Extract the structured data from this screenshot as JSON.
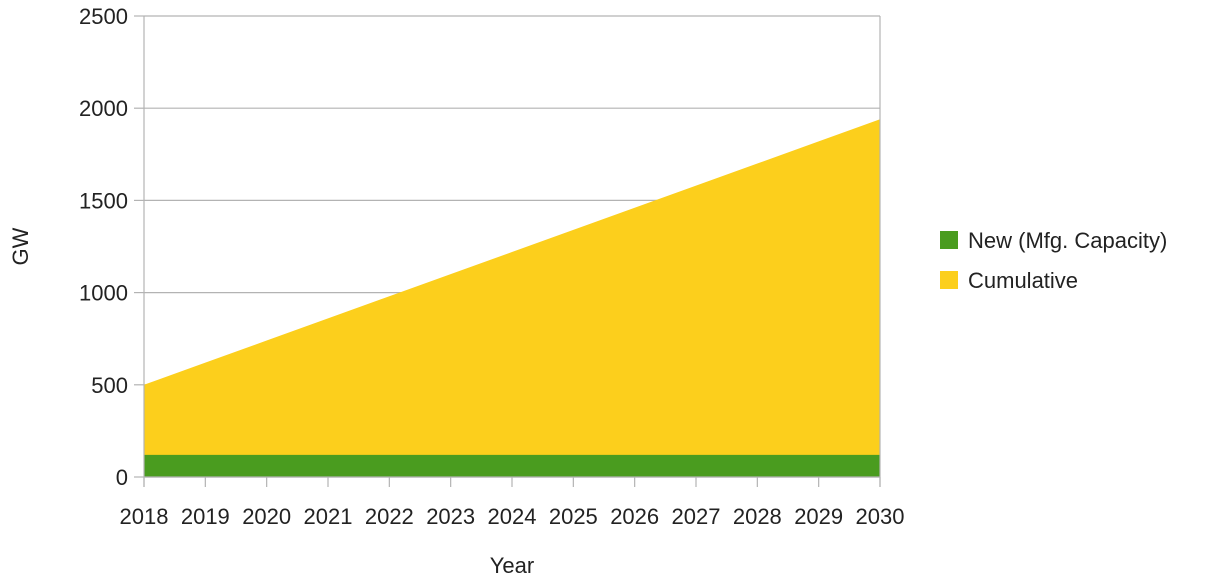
{
  "chart_data": {
    "type": "area",
    "title": "",
    "xlabel": "Year",
    "ylabel": "GW",
    "x": [
      "2018",
      "2019",
      "2020",
      "2021",
      "2022",
      "2023",
      "2024",
      "2025",
      "2026",
      "2027",
      "2028",
      "2029",
      "2030"
    ],
    "ylim": [
      0,
      2500
    ],
    "yticks": [
      0,
      500,
      1000,
      1500,
      2000,
      2500
    ],
    "grid": "horizontal",
    "legend_position": "right",
    "stacked": false,
    "series": [
      {
        "name": "Cumulative",
        "color": "#fccf1c",
        "values": [
          500,
          620,
          740,
          860,
          980,
          1100,
          1220,
          1340,
          1460,
          1580,
          1700,
          1820,
          1940
        ]
      },
      {
        "name": "New (Mfg. Capacity)",
        "color": "#4a9c1f",
        "values": [
          120,
          120,
          120,
          120,
          120,
          120,
          120,
          120,
          120,
          120,
          120,
          120,
          120
        ]
      }
    ],
    "legend_order": [
      "New (Mfg. Capacity)",
      "Cumulative"
    ]
  }
}
